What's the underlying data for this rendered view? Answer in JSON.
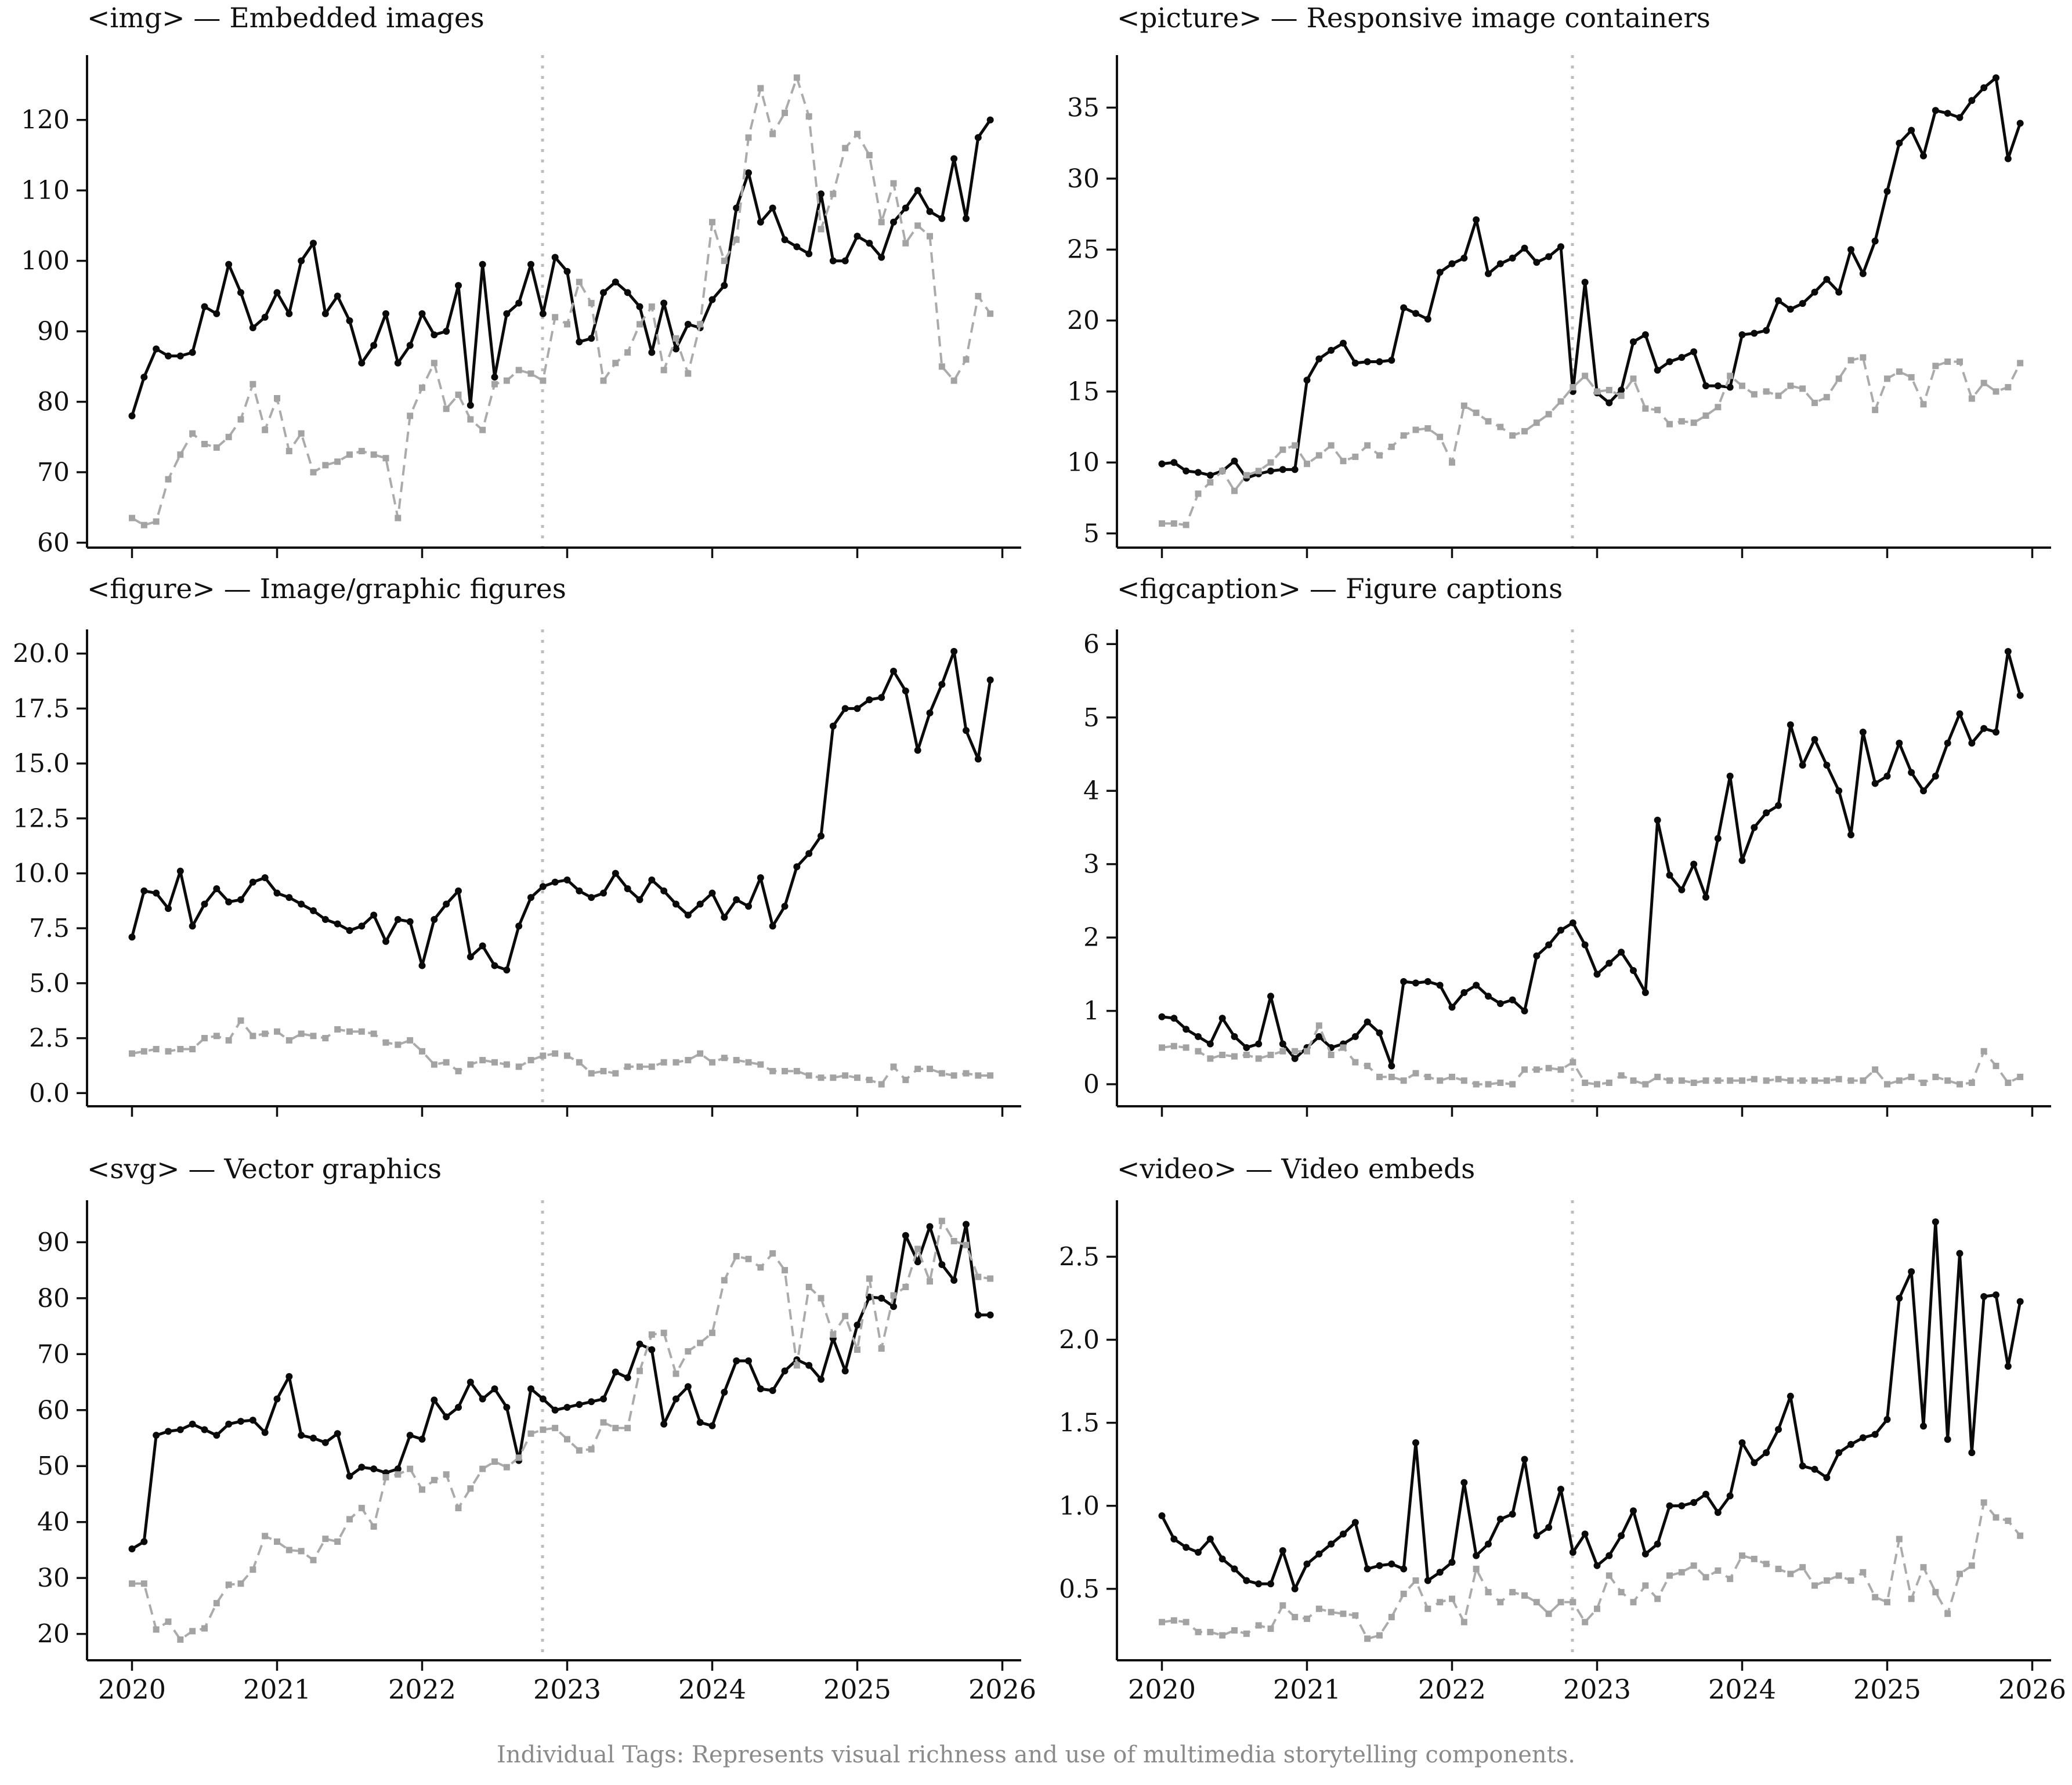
{
  "figure": {
    "footer": "Individual Tags: Represents visual richness and use of multimedia storytelling components."
  },
  "colors": {
    "primary_line": "#0a0a0a",
    "primary_marker": "#0a0a0a",
    "secondary_line": "#ababab",
    "secondary_marker": "#a3a3a3",
    "vline": "#bdbdbd",
    "axis": "#111111",
    "tick_label": "#111111",
    "footer_text": "#8a8a8a",
    "background": "#ffffff"
  },
  "x_axis": {
    "ticks": [
      "2020",
      "2021",
      "2022",
      "2023",
      "2024",
      "2025",
      "2026"
    ],
    "xlim": [
      2019.69,
      2026.13
    ],
    "start_year": 2020,
    "points_per_year": 12,
    "vline_x": 2022.83
  },
  "chart_data": [
    {
      "type": "line",
      "tag": "img",
      "title": "<img> — Embedded images",
      "y_ticks": [
        "60",
        "70",
        "80",
        "90",
        "100",
        "110",
        "120"
      ],
      "ylim": [
        59.3,
        129.2
      ],
      "series": [
        {
          "name": "solid",
          "line": "solid",
          "marker": "circle",
          "values": [
            78,
            83.5,
            87.5,
            86.5,
            86.5,
            87,
            93.5,
            92.5,
            99.5,
            95.5,
            90.5,
            92,
            95.5,
            92.5,
            100,
            102.5,
            92.5,
            95,
            91.5,
            85.5,
            88,
            92.5,
            85.5,
            88,
            92.5,
            89.5,
            90,
            96.5,
            79.5,
            99.5,
            83.5,
            92.5,
            94,
            99.5,
            92.5,
            100.5,
            98.5,
            88.5,
            89,
            95.5,
            97,
            95.5,
            93.5,
            87,
            94,
            87.5,
            91,
            90.5,
            94.5,
            96.5,
            107.5,
            112.5,
            105.5,
            107.5,
            103,
            102,
            101,
            109.5,
            100,
            100,
            103.5,
            102.5,
            100.5,
            105.5,
            107.5,
            110,
            107,
            106,
            114.5,
            106,
            117.5,
            120
          ]
        },
        {
          "name": "dashed",
          "line": "dashed",
          "marker": "square",
          "values": [
            63.5,
            62.5,
            63,
            69,
            72.5,
            75.5,
            74,
            73.5,
            75,
            77.5,
            82.5,
            76,
            80.5,
            73,
            75.5,
            70,
            71,
            71.5,
            72.5,
            73,
            72.5,
            72,
            63.5,
            78,
            82,
            85.5,
            79,
            81,
            77.5,
            76,
            82.5,
            83,
            84.5,
            84,
            83,
            92,
            91,
            97,
            94,
            83,
            85.5,
            87,
            91,
            93.5,
            84.5,
            89,
            84,
            91,
            105.5,
            100,
            103,
            117.5,
            124.5,
            118,
            121,
            126,
            120.5,
            104.5,
            109.5,
            116,
            118,
            115,
            105.5,
            111,
            102.5,
            105,
            103.5,
            85,
            83,
            86,
            95,
            92.5
          ]
        }
      ]
    },
    {
      "type": "line",
      "tag": "picture",
      "title": "<picture> — Responsive image containers",
      "y_ticks": [
        "5",
        "10",
        "15",
        "20",
        "25",
        "30",
        "35"
      ],
      "ylim": [
        4.0,
        38.7
      ],
      "series": [
        {
          "name": "solid",
          "line": "solid",
          "marker": "circle",
          "values": [
            9.9,
            10,
            9.4,
            9.3,
            9.1,
            9.4,
            10.1,
            8.9,
            9.2,
            9.4,
            9.5,
            9.5,
            15.8,
            17.3,
            17.9,
            18.4,
            17,
            17.1,
            17.1,
            17.2,
            20.9,
            20.5,
            20.1,
            23.4,
            24,
            24.4,
            27.1,
            23.3,
            24,
            24.4,
            25.1,
            24.1,
            24.5,
            25.2,
            15,
            22.7,
            14.9,
            14.2,
            15.1,
            18.5,
            19,
            16.5,
            17.1,
            17.4,
            17.8,
            15.4,
            15.4,
            15.3,
            19,
            19.1,
            19.3,
            21.4,
            20.8,
            21.2,
            22,
            22.9,
            22,
            25,
            23.3,
            25.6,
            29.1,
            32.5,
            33.4,
            31.6,
            34.8,
            34.6,
            34.3,
            35.5,
            36.4,
            37.1,
            31.4,
            33.9
          ]
        },
        {
          "name": "dashed",
          "line": "dashed",
          "marker": "square",
          "values": [
            5.7,
            5.7,
            5.6,
            7.8,
            8.6,
            9.4,
            8,
            9.1,
            9.4,
            10,
            10.9,
            11.2,
            9.9,
            10.5,
            11.2,
            10.1,
            10.4,
            11.2,
            10.5,
            11.1,
            11.9,
            12.3,
            12.4,
            11.8,
            10,
            14,
            13.5,
            12.9,
            12.5,
            11.9,
            12.2,
            12.8,
            13.4,
            14.3,
            15.3,
            16.1,
            15,
            15.1,
            14.7,
            15.9,
            13.8,
            13.7,
            12.7,
            12.9,
            12.8,
            13.3,
            13.9,
            16.1,
            15.4,
            14.8,
            15,
            14.7,
            15.4,
            15.2,
            14.2,
            14.6,
            15.9,
            17.2,
            17.4,
            13.7,
            15.9,
            16.4,
            16,
            14.1,
            16.8,
            17.1,
            17.1,
            14.5,
            15.6,
            15,
            15.3,
            17
          ]
        }
      ]
    },
    {
      "type": "line",
      "tag": "figure",
      "title": "<figure> — Image/graphic figures",
      "y_ticks": [
        "0.0",
        "2.5",
        "5.0",
        "7.5",
        "10.0",
        "12.5",
        "15.0",
        "17.5",
        "20.0"
      ],
      "ylim": [
        -0.6,
        21.1
      ],
      "series": [
        {
          "name": "solid",
          "line": "solid",
          "marker": "circle",
          "values": [
            7.1,
            9.2,
            9.1,
            8.4,
            10.1,
            7.6,
            8.6,
            9.3,
            8.7,
            8.8,
            9.6,
            9.8,
            9.1,
            8.9,
            8.6,
            8.3,
            7.9,
            7.7,
            7.4,
            7.6,
            8.1,
            6.9,
            7.9,
            7.8,
            5.8,
            7.9,
            8.6,
            9.2,
            6.2,
            6.7,
            5.8,
            5.6,
            7.6,
            8.9,
            9.4,
            9.6,
            9.7,
            9.2,
            8.9,
            9.1,
            10,
            9.3,
            8.8,
            9.7,
            9.2,
            8.6,
            8.1,
            8.6,
            9.1,
            8,
            8.8,
            8.5,
            9.8,
            7.6,
            8.5,
            10.3,
            10.9,
            11.7,
            16.7,
            17.5,
            17.5,
            17.9,
            18,
            19.2,
            18.3,
            15.6,
            17.3,
            18.6,
            20.1,
            16.5,
            15.2,
            18.8
          ]
        },
        {
          "name": "dashed",
          "line": "dashed",
          "marker": "square",
          "values": [
            1.8,
            1.9,
            2,
            1.9,
            2,
            2,
            2.5,
            2.6,
            2.4,
            3.3,
            2.6,
            2.7,
            2.8,
            2.4,
            2.7,
            2.6,
            2.5,
            2.9,
            2.8,
            2.8,
            2.7,
            2.3,
            2.2,
            2.4,
            1.9,
            1.3,
            1.4,
            1,
            1.3,
            1.5,
            1.4,
            1.3,
            1.2,
            1.5,
            1.7,
            1.8,
            1.7,
            1.4,
            0.9,
            1,
            0.9,
            1.2,
            1.2,
            1.2,
            1.4,
            1.4,
            1.5,
            1.8,
            1.4,
            1.6,
            1.5,
            1.4,
            1.3,
            1,
            1,
            1,
            0.8,
            0.7,
            0.7,
            0.8,
            0.7,
            0.6,
            0.4,
            1.2,
            0.6,
            1.1,
            1.1,
            0.9,
            0.8,
            0.9,
            0.8,
            0.8
          ]
        }
      ]
    },
    {
      "type": "line",
      "tag": "figcaption",
      "title": "<figcaption> — Figure captions",
      "y_ticks": [
        "0",
        "1",
        "2",
        "3",
        "4",
        "5",
        "6"
      ],
      "ylim": [
        -0.3,
        6.2
      ],
      "series": [
        {
          "name": "solid",
          "line": "solid",
          "marker": "circle",
          "values": [
            0.92,
            0.9,
            0.75,
            0.65,
            0.55,
            0.9,
            0.65,
            0.5,
            0.55,
            1.2,
            0.55,
            0.35,
            0.5,
            0.65,
            0.5,
            0.55,
            0.65,
            0.85,
            0.7,
            0.25,
            1.4,
            1.38,
            1.4,
            1.35,
            1.05,
            1.25,
            1.35,
            1.2,
            1.1,
            1.15,
            1,
            1.75,
            1.9,
            2.1,
            2.2,
            1.9,
            1.5,
            1.65,
            1.8,
            1.55,
            1.25,
            3.6,
            2.85,
            2.65,
            3,
            2.55,
            3.35,
            4.2,
            3.05,
            3.5,
            3.7,
            3.8,
            4.9,
            4.35,
            4.7,
            4.35,
            4,
            3.4,
            4.8,
            4.1,
            4.2,
            4.65,
            4.25,
            4,
            4.2,
            4.65,
            5.05,
            4.65,
            4.85,
            4.8,
            5.9,
            5.3
          ]
        },
        {
          "name": "dashed",
          "line": "dashed",
          "marker": "square",
          "values": [
            0.5,
            0.52,
            0.5,
            0.45,
            0.35,
            0.4,
            0.38,
            0.4,
            0.35,
            0.4,
            0.45,
            0.45,
            0.45,
            0.8,
            0.4,
            0.5,
            0.3,
            0.25,
            0.1,
            0.1,
            0.05,
            0.15,
            0.1,
            0.05,
            0.1,
            0.05,
            0,
            0,
            0.02,
            0,
            0.2,
            0.2,
            0.22,
            0.2,
            0.3,
            0.02,
            0,
            0.02,
            0.12,
            0.05,
            0,
            0.1,
            0.05,
            0.05,
            0.02,
            0.05,
            0.05,
            0.05,
            0.05,
            0.07,
            0.05,
            0.07,
            0.05,
            0.05,
            0.05,
            0.05,
            0.07,
            0.05,
            0.05,
            0.2,
            0,
            0.05,
            0.1,
            0.02,
            0.1,
            0.05,
            0,
            0.02,
            0.45,
            0.25,
            0.02,
            0.1
          ]
        }
      ]
    },
    {
      "type": "line",
      "tag": "svg",
      "title": "<svg> — Vector graphics",
      "y_ticks": [
        "20",
        "30",
        "40",
        "50",
        "60",
        "70",
        "80",
        "90"
      ],
      "ylim": [
        15.3,
        97.5
      ],
      "series": [
        {
          "name": "solid",
          "line": "solid",
          "marker": "circle",
          "values": [
            35.2,
            36.5,
            55.5,
            56.2,
            56.5,
            57.5,
            56.5,
            55.5,
            57.5,
            58,
            58.2,
            56,
            62,
            66,
            55.5,
            55,
            54.2,
            55.8,
            48.2,
            49.8,
            49.5,
            48.8,
            49.5,
            55.5,
            54.8,
            61.8,
            58.8,
            60.5,
            65,
            62,
            63.8,
            60.5,
            51,
            63.8,
            62,
            60,
            60.5,
            61,
            61.5,
            62,
            66.8,
            65.8,
            71.8,
            70.8,
            57.5,
            62,
            64.2,
            57.8,
            57.2,
            63.2,
            68.8,
            68.8,
            63.8,
            63.5,
            67,
            69,
            68,
            65.5,
            72.8,
            67,
            75.2,
            80.2,
            80,
            78.5,
            91.2,
            86.5,
            92.8,
            86,
            83.2,
            93.2,
            77,
            77
          ]
        },
        {
          "name": "dashed",
          "line": "dashed",
          "marker": "square",
          "values": [
            29,
            29,
            20.8,
            22.2,
            19,
            20.5,
            21,
            25.5,
            28.8,
            29,
            31.5,
            37.5,
            36.5,
            35,
            34.8,
            33.2,
            37,
            36.5,
            40.5,
            42.5,
            39.2,
            48,
            48.5,
            49.5,
            45.8,
            47.5,
            48.5,
            42.5,
            46,
            49.5,
            50.8,
            49.8,
            51.5,
            55.8,
            56.5,
            56.8,
            54.8,
            52.8,
            53,
            57.8,
            56.8,
            56.8,
            67,
            73.5,
            73.8,
            66.5,
            70.5,
            72,
            73.8,
            83.2,
            87.5,
            87,
            85.5,
            88,
            85,
            68,
            82,
            80,
            73.5,
            76.8,
            70.8,
            83.5,
            71,
            80.5,
            82,
            88.8,
            83,
            93.8,
            90.2,
            89.5,
            83.8,
            83.5
          ]
        }
      ]
    },
    {
      "type": "line",
      "tag": "video",
      "title": "<video> — Video embeds",
      "y_ticks": [
        "0.5",
        "1.0",
        "1.5",
        "2.0",
        "2.5"
      ],
      "ylim": [
        0.07,
        2.84
      ],
      "series": [
        {
          "name": "solid",
          "line": "solid",
          "marker": "circle",
          "values": [
            0.94,
            0.8,
            0.75,
            0.72,
            0.8,
            0.68,
            0.62,
            0.55,
            0.53,
            0.53,
            0.73,
            0.5,
            0.65,
            0.71,
            0.77,
            0.83,
            0.9,
            0.62,
            0.64,
            0.65,
            0.62,
            1.38,
            0.55,
            0.6,
            0.66,
            1.14,
            0.7,
            0.77,
            0.92,
            0.95,
            1.28,
            0.82,
            0.87,
            1.1,
            0.72,
            0.83,
            0.64,
            0.7,
            0.82,
            0.97,
            0.71,
            0.77,
            1,
            1,
            1.02,
            1.07,
            0.96,
            1.06,
            1.38,
            1.26,
            1.32,
            1.46,
            1.66,
            1.24,
            1.22,
            1.17,
            1.32,
            1.37,
            1.41,
            1.43,
            1.52,
            2.25,
            2.41,
            1.48,
            2.71,
            1.4,
            2.52,
            1.32,
            2.26,
            2.27,
            1.84,
            2.23
          ]
        },
        {
          "name": "dashed",
          "line": "dashed",
          "marker": "square",
          "values": [
            0.3,
            0.31,
            0.3,
            0.24,
            0.24,
            0.22,
            0.25,
            0.23,
            0.28,
            0.26,
            0.4,
            0.33,
            0.32,
            0.38,
            0.36,
            0.35,
            0.34,
            0.2,
            0.22,
            0.33,
            0.47,
            0.55,
            0.38,
            0.42,
            0.44,
            0.3,
            0.62,
            0.48,
            0.42,
            0.48,
            0.46,
            0.42,
            0.35,
            0.42,
            0.42,
            0.3,
            0.38,
            0.58,
            0.48,
            0.42,
            0.52,
            0.44,
            0.58,
            0.6,
            0.64,
            0.57,
            0.61,
            0.56,
            0.7,
            0.68,
            0.65,
            0.62,
            0.59,
            0.63,
            0.52,
            0.55,
            0.58,
            0.55,
            0.6,
            0.45,
            0.42,
            0.8,
            0.44,
            0.63,
            0.48,
            0.35,
            0.59,
            0.64,
            1.02,
            0.93,
            0.91,
            0.82
          ]
        }
      ]
    }
  ]
}
